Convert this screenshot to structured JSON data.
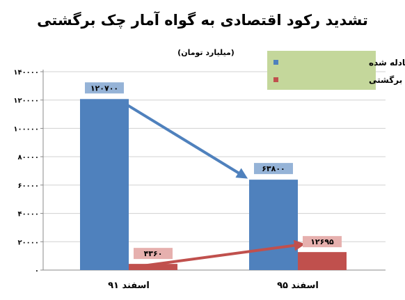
{
  "chart_data": {
    "type": "bar",
    "title": "تشدید رکود اقتصادی به گواه آمار چک برگشتی",
    "unit_label": "(میلیارد تومان)",
    "categories": [
      "اسفند ۹۱",
      "اسفند ۹۵"
    ],
    "series": [
      {
        "name": "مبلغ چک مبادله شده",
        "values": [
          120700,
          63800
        ],
        "value_labels": [
          "۱۲۰۷۰۰",
          "۶۳۸۰۰"
        ],
        "color": "#4f81bd",
        "label_bg": "#95b3d7"
      },
      {
        "name": "مبلغ چک برگشتی",
        "values": [
          4360,
          12695
        ],
        "value_labels": [
          "۴۳۶۰",
          "۱۲۶۹۵"
        ],
        "color": "#c0504d",
        "label_bg": "#e6b0ae"
      }
    ],
    "ylim": [
      0,
      140000
    ],
    "yticks": [
      0,
      20000,
      40000,
      60000,
      80000,
      100000,
      120000,
      140000
    ],
    "ytick_labels": [
      "۰",
      "۲۰۰۰۰",
      "۴۰۰۰۰",
      "۶۰۰۰۰",
      "۸۰۰۰۰",
      "۱۰۰۰۰۰",
      "۱۲۰۰۰۰",
      "۱۴۰۰۰۰"
    ],
    "grid": true,
    "legend_position": "top-right",
    "legend_bg": "#c4d79b",
    "arrows": [
      {
        "series": 0,
        "from_category": 0,
        "to_category": 1
      },
      {
        "series": 1,
        "from_category": 0,
        "to_category": 1
      }
    ]
  }
}
